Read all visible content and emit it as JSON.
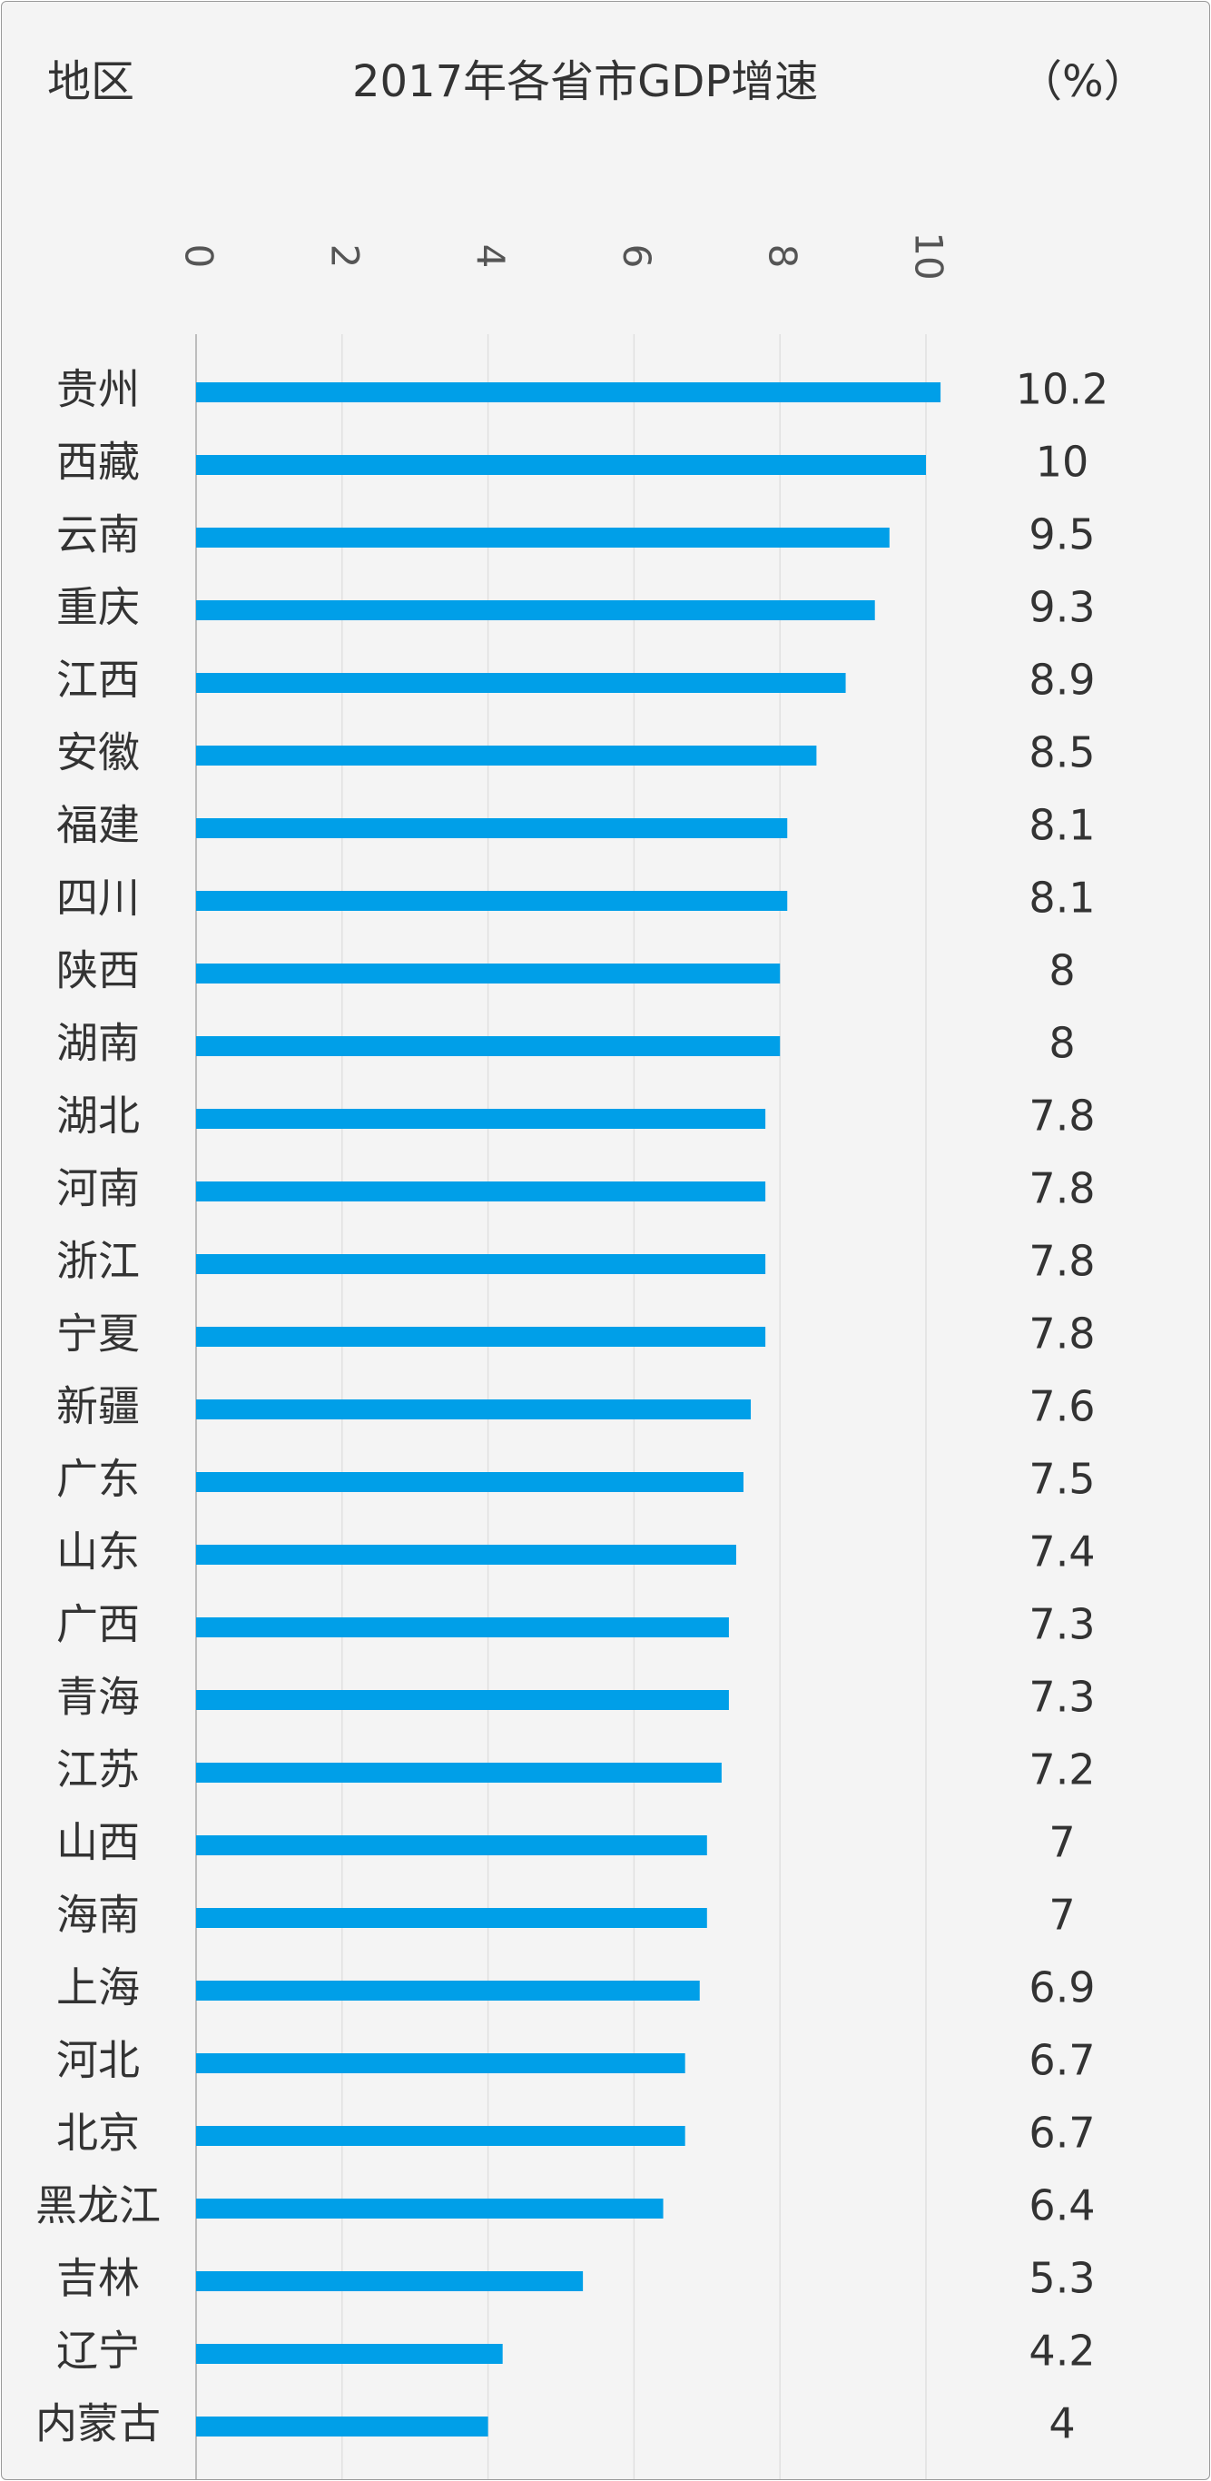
{
  "header": {
    "region_label": "地区",
    "title": "2017年各省市GDP增速",
    "unit_label": "（%）"
  },
  "chart_data": {
    "type": "bar",
    "orientation": "horizontal",
    "title": "2017年各省市GDP增速",
    "xlabel": "",
    "ylabel": "地区",
    "unit": "%",
    "xlim": [
      0,
      10.2
    ],
    "x_ticks": [
      "0",
      "2",
      "4",
      "6",
      "8",
      "10"
    ],
    "grid": true,
    "bar_color": "#009fe8",
    "categories": [
      "贵州",
      "西藏",
      "云南",
      "重庆",
      "江西",
      "安徽",
      "福建",
      "四川",
      "陕西",
      "湖南",
      "湖北",
      "河南",
      "浙江",
      "宁夏",
      "新疆",
      "广东",
      "山东",
      "广西",
      "青海",
      "江苏",
      "山西",
      "海南",
      "上海",
      "河北",
      "北京",
      "黑龙江",
      "吉林",
      "辽宁",
      "内蒙古"
    ],
    "values": [
      10.2,
      10,
      9.5,
      9.3,
      8.9,
      8.5,
      8.1,
      8.1,
      8,
      8,
      7.8,
      7.8,
      7.8,
      7.8,
      7.6,
      7.5,
      7.4,
      7.3,
      7.3,
      7.2,
      7,
      7,
      6.9,
      6.7,
      6.7,
      6.4,
      5.3,
      4.2,
      4
    ],
    "value_labels": [
      "10.2",
      "10",
      "9.5",
      "9.3",
      "8.9",
      "8.5",
      "8.1",
      "8.1",
      "8",
      "8",
      "7.8",
      "7.8",
      "7.8",
      "7.8",
      "7.6",
      "7.5",
      "7.4",
      "7.3",
      "7.3",
      "7.2",
      "7",
      "7",
      "6.9",
      "6.7",
      "6.7",
      "6.4",
      "5.3",
      "4.2",
      "4"
    ]
  }
}
